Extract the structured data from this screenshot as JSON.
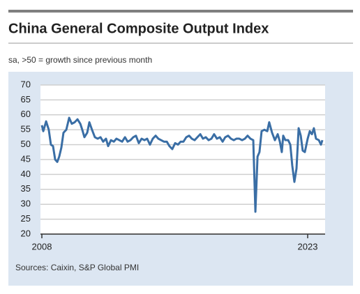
{
  "chart_data": {
    "type": "line",
    "title": "China General Composite Output Index",
    "subtitle": "sa, >50 = growth since previous month",
    "source": "Sources: Caixin, S&P Global PMI",
    "x": [
      2008.0,
      2008.08,
      2008.24,
      2008.39,
      2008.51,
      2008.63,
      2008.75,
      2008.87,
      2008.98,
      2009.1,
      2009.22,
      2009.38,
      2009.54,
      2009.69,
      2009.85,
      2010.01,
      2010.17,
      2010.28,
      2010.4,
      2010.56,
      2010.68,
      2010.83,
      2010.99,
      2011.15,
      2011.31,
      2011.46,
      2011.62,
      2011.74,
      2011.9,
      2012.06,
      2012.21,
      2012.37,
      2012.53,
      2012.69,
      2012.84,
      2013.0,
      2013.16,
      2013.31,
      2013.47,
      2013.63,
      2013.79,
      2013.94,
      2014.1,
      2014.26,
      2014.42,
      2014.57,
      2014.73,
      2014.89,
      2015.05,
      2015.2,
      2015.36,
      2015.52,
      2015.68,
      2015.83,
      2015.99,
      2016.15,
      2016.31,
      2016.46,
      2016.62,
      2016.78,
      2016.94,
      2017.09,
      2017.25,
      2017.41,
      2017.57,
      2017.72,
      2017.88,
      2018.04,
      2018.2,
      2018.35,
      2018.51,
      2018.67,
      2018.83,
      2018.98,
      2019.14,
      2019.3,
      2019.46,
      2019.61,
      2019.77,
      2019.93,
      2020.05,
      2020.17,
      2020.28,
      2020.4,
      2020.56,
      2020.72,
      2020.83,
      2020.99,
      2021.15,
      2021.31,
      2021.43,
      2021.54,
      2021.62,
      2021.74,
      2021.9,
      2022.02,
      2022.13,
      2022.25,
      2022.37,
      2022.49,
      2022.61,
      2022.72,
      2022.84,
      2023.0,
      2023.12,
      2023.24,
      2023.35,
      2023.47,
      2023.63,
      2023.75,
      2023.83
    ],
    "series": [
      {
        "color": "#3a6ea5",
        "values": [
          56.5,
          54.5,
          57.8,
          55,
          50,
          49.5,
          45,
          44.2,
          46,
          49,
          54,
          55,
          59,
          57,
          57.5,
          58.5,
          57,
          55,
          52.5,
          54,
          57.5,
          55,
          52.5,
          52,
          52.5,
          51,
          52,
          49.5,
          51.5,
          51,
          52,
          51.5,
          51,
          52.5,
          51,
          51.5,
          52.5,
          53,
          50.5,
          52,
          51.5,
          52,
          50,
          52,
          53,
          52,
          51.5,
          51,
          51,
          49.5,
          48.5,
          50.5,
          50,
          51,
          51,
          52.5,
          53,
          52,
          51.5,
          52.5,
          53.5,
          52,
          52.5,
          51.5,
          52,
          53.5,
          52,
          52.5,
          51,
          52.5,
          53,
          52,
          51.5,
          52,
          52,
          51.5,
          52,
          53,
          52,
          51.5,
          27.5,
          46,
          47.5,
          54.5,
          55,
          54.5,
          57.5,
          54,
          51.5,
          53.5,
          51,
          47.5,
          53,
          51.5,
          51.5,
          50,
          43,
          37.5,
          42,
          55.5,
          53,
          48,
          47.5,
          52,
          54.5,
          53.5,
          55.5,
          52,
          51.5,
          50,
          51.5
        ]
      }
    ],
    "xlim": [
      2008,
      2024
    ],
    "xticks": [
      2008,
      2023
    ],
    "ylim": [
      20,
      70
    ],
    "yticks": [
      20,
      25,
      30,
      35,
      40,
      45,
      50,
      55,
      60,
      65,
      70
    ],
    "grid": true
  }
}
